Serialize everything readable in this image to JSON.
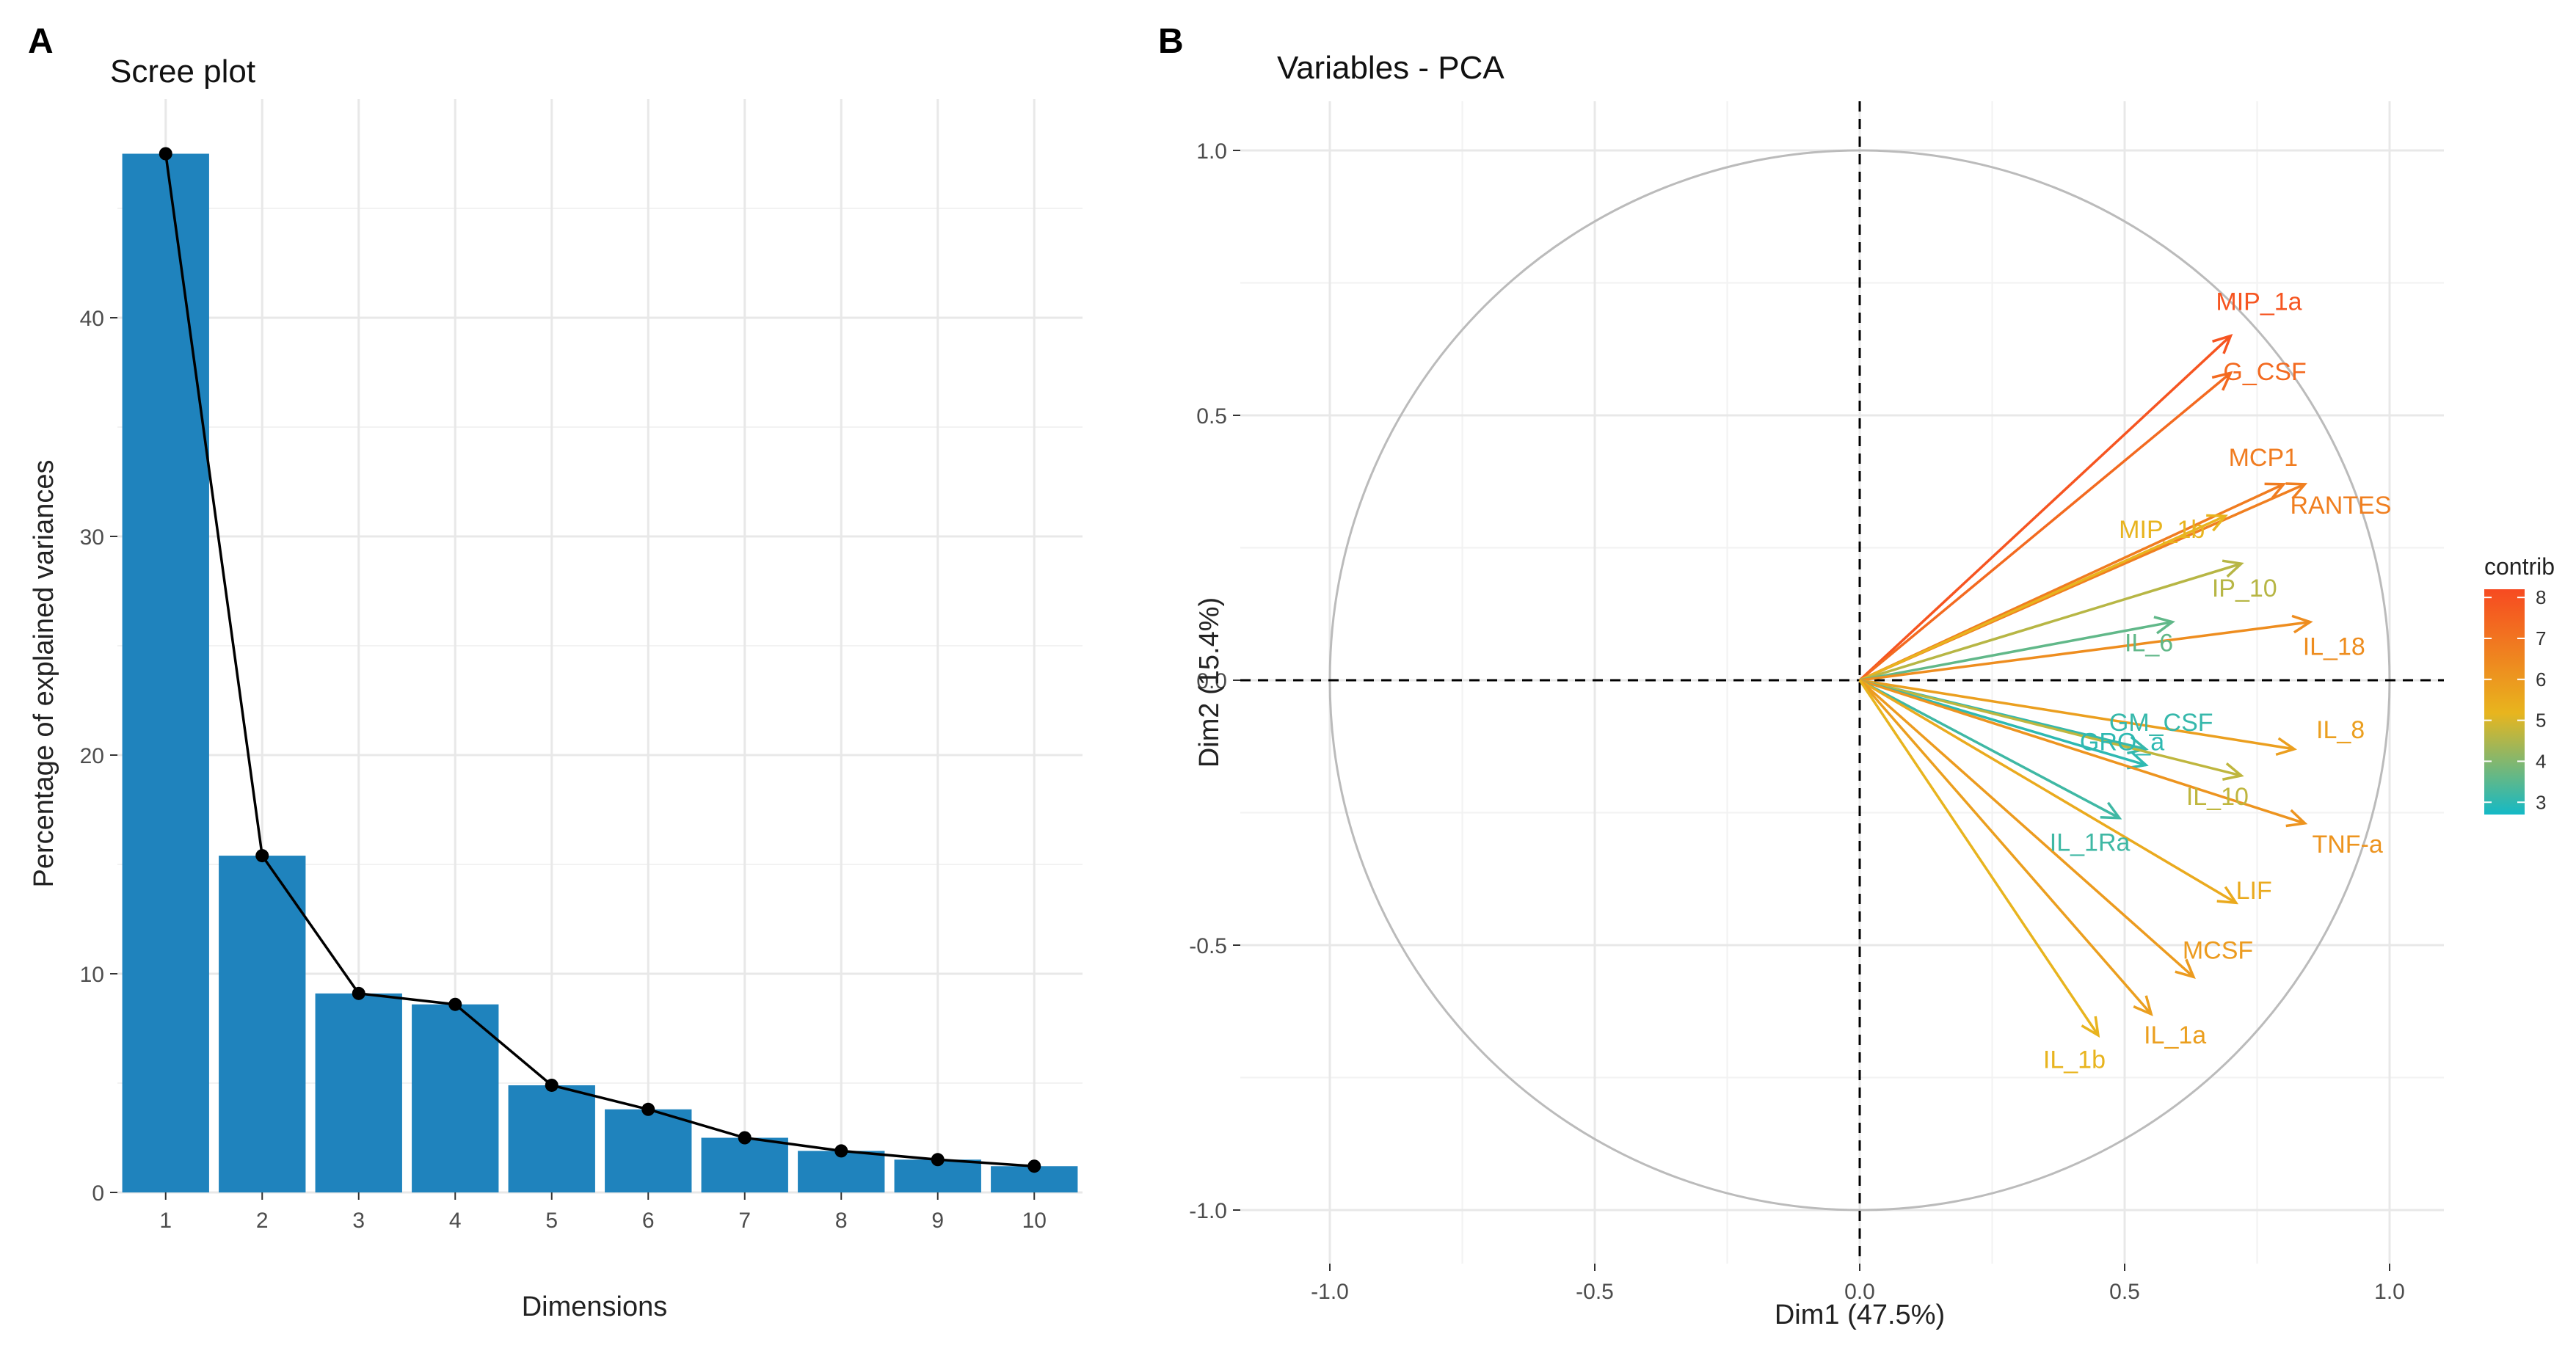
{
  "panels": {
    "a_letter": "A",
    "b_letter": "B"
  },
  "colors": {
    "bar": "#1f83bd",
    "grid": "#e8e8e8",
    "line": "#000000",
    "circle": "#bbbbbb",
    "contrib_low": "#14b9c6",
    "contrib_mid": "#e8b51e",
    "contrib_high": "#f74a21"
  },
  "chart_data": [
    {
      "type": "bar",
      "title": "Scree plot",
      "xlabel": "Dimensions",
      "ylabel": "Percentage of explained variances",
      "categories": [
        "1",
        "2",
        "3",
        "4",
        "5",
        "6",
        "7",
        "8",
        "9",
        "10"
      ],
      "values": [
        47.5,
        15.4,
        9.1,
        8.6,
        4.9,
        3.8,
        2.5,
        1.9,
        1.5,
        1.2
      ],
      "overlay": "line-with-points",
      "ylim": [
        0,
        50
      ],
      "yticks": [
        "0",
        "10",
        "20",
        "30",
        "40"
      ],
      "grid": true
    },
    {
      "type": "scatter",
      "subtype": "pca-variables-correlation-circle",
      "title": "Variables - PCA",
      "xlabel": "Dim1 (47.5%)",
      "ylabel": "Dim2 (15.4%)",
      "xlim": [
        -1.0,
        1.0
      ],
      "ylim": [
        -1.0,
        1.0
      ],
      "xticks": [
        "-1.0",
        "-0.5",
        "0.0",
        "0.5",
        "1.0"
      ],
      "yticks": [
        "-1.0",
        "-0.5",
        "0.0",
        "0.5",
        "1.0"
      ],
      "grid": true,
      "legend": {
        "title": "contrib",
        "position": "right",
        "range": [
          2.7,
          8.2
        ],
        "ticks": [
          "3",
          "4",
          "5",
          "6",
          "7",
          "8"
        ]
      },
      "variables": [
        {
          "name": "MIP_1a",
          "x": 0.7,
          "y": 0.65,
          "contrib": 7.9
        },
        {
          "name": "G_CSF",
          "x": 0.7,
          "y": 0.58,
          "contrib": 7.3
        },
        {
          "name": "MCP1",
          "x": 0.8,
          "y": 0.37,
          "contrib": 6.8
        },
        {
          "name": "RANTES",
          "x": 0.84,
          "y": 0.37,
          "contrib": 6.7
        },
        {
          "name": "MIP_1b",
          "x": 0.69,
          "y": 0.31,
          "contrib": 5.2
        },
        {
          "name": "IP_10",
          "x": 0.72,
          "y": 0.22,
          "contrib": 4.6
        },
        {
          "name": "IL_6",
          "x": 0.59,
          "y": 0.11,
          "contrib": 3.6
        },
        {
          "name": "IL_18",
          "x": 0.85,
          "y": 0.11,
          "contrib": 6.3
        },
        {
          "name": "GM_CSF",
          "x": 0.54,
          "y": -0.13,
          "contrib": 3.1
        },
        {
          "name": "IL_8",
          "x": 0.82,
          "y": -0.13,
          "contrib": 5.8
        },
        {
          "name": "IL_10",
          "x": 0.72,
          "y": -0.18,
          "contrib": 4.7
        },
        {
          "name": "GRO_a",
          "x": 0.54,
          "y": -0.16,
          "contrib": 3.0
        },
        {
          "name": "TNF-a",
          "x": 0.84,
          "y": -0.27,
          "contrib": 6.1
        },
        {
          "name": "IL_1Ra",
          "x": 0.49,
          "y": -0.26,
          "contrib": 3.2
        },
        {
          "name": "LIF",
          "x": 0.71,
          "y": -0.42,
          "contrib": 5.5
        },
        {
          "name": "MCSF",
          "x": 0.63,
          "y": -0.56,
          "contrib": 5.9
        },
        {
          "name": "IL_1a",
          "x": 0.55,
          "y": -0.63,
          "contrib": 5.8
        },
        {
          "name": "IL_1b",
          "x": 0.45,
          "y": -0.67,
          "contrib": 5.2
        }
      ]
    }
  ]
}
